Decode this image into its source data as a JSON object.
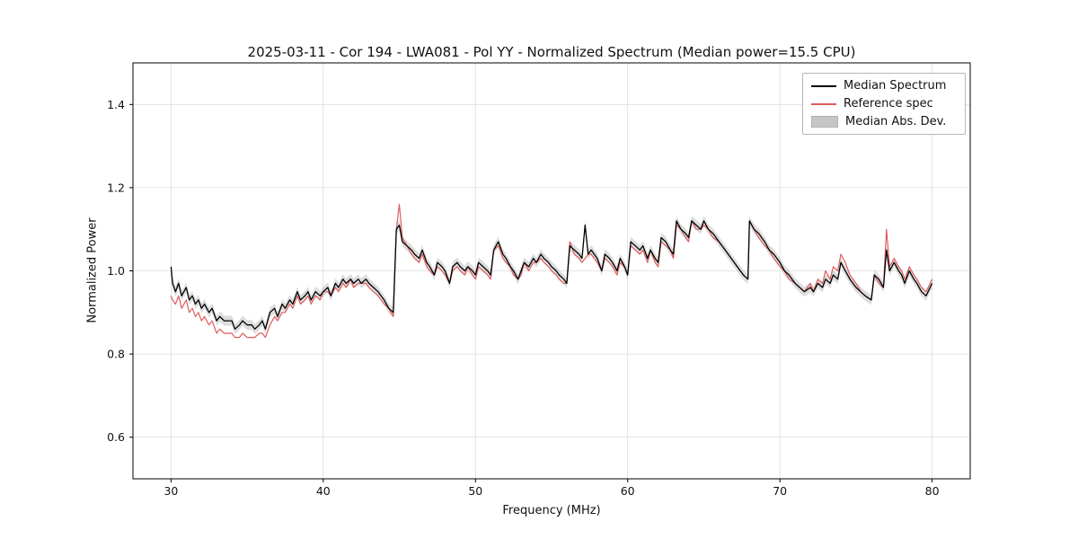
{
  "figure": {
    "title": "2025-03-11 - Cor 194 - LWA081 - Pol YY - Normalized Spectrum (Median power=15.5 CPU)",
    "xlabel": "Frequency (MHz)",
    "ylabel": "Normalized Power"
  },
  "legend": {
    "items": [
      {
        "label": "Median Spectrum",
        "type": "line",
        "color": "#000000"
      },
      {
        "label": "Reference spec",
        "type": "line",
        "color": "#e05c5c"
      },
      {
        "label": "Median Abs. Dev.",
        "type": "band",
        "color": "#c6c6c6"
      }
    ]
  },
  "chart_data": {
    "type": "line",
    "title": "2025-03-11 - Cor 194 - LWA081 - Pol YY - Normalized Spectrum (Median power=15.5 CPU)",
    "xlabel": "Frequency (MHz)",
    "ylabel": "Normalized Power",
    "xlim": [
      27.5,
      82.5
    ],
    "ylim": [
      0.5,
      1.5
    ],
    "xticks": [
      30,
      40,
      50,
      60,
      70,
      80
    ],
    "xticklabels": [
      "30",
      "40",
      "50",
      "60",
      "70",
      "80"
    ],
    "yticks": [
      0.6,
      0.8,
      1.0,
      1.2,
      1.4
    ],
    "yticklabels": [
      "0.6",
      "0.8",
      "1.0",
      "1.2",
      "1.4"
    ],
    "grid": true,
    "grid_color": "#dddddd",
    "legend_position": "upper right",
    "mad_halfwidth": 0.012,
    "band_color": "#aaaaaa",
    "band_opacity": 0.4,
    "x": [
      30.0,
      30.1,
      30.3,
      30.5,
      30.7,
      31.0,
      31.2,
      31.4,
      31.6,
      31.8,
      32.0,
      32.2,
      32.5,
      32.7,
      33.0,
      33.2,
      33.5,
      34.0,
      34.2,
      34.5,
      34.7,
      35.0,
      35.3,
      35.5,
      35.8,
      36.0,
      36.2,
      36.5,
      36.8,
      37.0,
      37.3,
      37.5,
      37.8,
      38.0,
      38.3,
      38.5,
      38.8,
      39.0,
      39.2,
      39.5,
      39.8,
      40.0,
      40.3,
      40.5,
      40.8,
      41.0,
      41.3,
      41.5,
      41.8,
      42.0,
      42.3,
      42.5,
      42.8,
      43.0,
      43.3,
      43.6,
      44.0,
      44.3,
      44.6,
      44.8,
      45.0,
      45.2,
      45.5,
      45.8,
      46.0,
      46.3,
      46.5,
      46.8,
      47.0,
      47.3,
      47.5,
      47.8,
      48.0,
      48.3,
      48.5,
      48.8,
      49.0,
      49.3,
      49.5,
      49.8,
      50.0,
      50.2,
      50.5,
      50.8,
      51.0,
      51.2,
      51.5,
      51.8,
      52.0,
      52.3,
      52.5,
      52.8,
      53.0,
      53.2,
      53.5,
      53.8,
      54.0,
      54.3,
      54.5,
      54.8,
      55.0,
      55.3,
      55.5,
      55.8,
      56.0,
      56.2,
      56.5,
      56.8,
      57.0,
      57.2,
      57.4,
      57.6,
      58.0,
      58.3,
      58.5,
      58.8,
      59.0,
      59.3,
      59.5,
      59.8,
      60.0,
      60.2,
      60.5,
      60.8,
      61.0,
      61.3,
      61.5,
      61.8,
      62.0,
      62.2,
      62.5,
      62.8,
      63.0,
      63.2,
      63.5,
      63.8,
      64.0,
      64.2,
      64.5,
      64.8,
      65.0,
      65.3,
      65.6,
      66.0,
      66.4,
      66.8,
      67.2,
      67.6,
      67.9,
      68.0,
      68.3,
      68.6,
      69.0,
      69.3,
      69.6,
      70.0,
      70.3,
      70.6,
      71.0,
      71.3,
      71.6,
      72.0,
      72.2,
      72.5,
      72.8,
      73.0,
      73.3,
      73.5,
      73.8,
      74.0,
      74.3,
      74.6,
      75.0,
      75.3,
      75.6,
      76.0,
      76.2,
      76.5,
      76.8,
      77.0,
      77.2,
      77.5,
      77.8,
      78.0,
      78.2,
      78.5,
      78.8,
      79.0,
      79.3,
      79.6,
      80.0
    ],
    "series": [
      {
        "name": "Median Spectrum",
        "color": "#000000",
        "values": [
          1.01,
          0.97,
          0.95,
          0.97,
          0.94,
          0.96,
          0.93,
          0.94,
          0.92,
          0.93,
          0.91,
          0.92,
          0.9,
          0.91,
          0.88,
          0.89,
          0.88,
          0.88,
          0.86,
          0.87,
          0.88,
          0.87,
          0.87,
          0.86,
          0.87,
          0.88,
          0.86,
          0.9,
          0.91,
          0.89,
          0.92,
          0.91,
          0.93,
          0.92,
          0.95,
          0.93,
          0.94,
          0.95,
          0.93,
          0.95,
          0.94,
          0.95,
          0.96,
          0.94,
          0.97,
          0.96,
          0.98,
          0.97,
          0.98,
          0.97,
          0.98,
          0.97,
          0.98,
          0.97,
          0.96,
          0.95,
          0.93,
          0.91,
          0.9,
          1.1,
          1.11,
          1.07,
          1.06,
          1.05,
          1.04,
          1.03,
          1.05,
          1.02,
          1.01,
          0.99,
          1.02,
          1.01,
          1.0,
          0.97,
          1.01,
          1.02,
          1.01,
          1.0,
          1.01,
          1.0,
          0.99,
          1.02,
          1.01,
          1.0,
          0.99,
          1.05,
          1.07,
          1.04,
          1.03,
          1.01,
          1.0,
          0.98,
          1.0,
          1.02,
          1.01,
          1.03,
          1.02,
          1.04,
          1.03,
          1.02,
          1.01,
          1.0,
          0.99,
          0.98,
          0.97,
          1.06,
          1.05,
          1.04,
          1.03,
          1.11,
          1.04,
          1.05,
          1.03,
          1.0,
          1.04,
          1.03,
          1.02,
          1.0,
          1.03,
          1.01,
          0.99,
          1.07,
          1.06,
          1.05,
          1.06,
          1.03,
          1.05,
          1.03,
          1.02,
          1.08,
          1.07,
          1.05,
          1.04,
          1.12,
          1.1,
          1.09,
          1.08,
          1.12,
          1.11,
          1.1,
          1.12,
          1.1,
          1.09,
          1.07,
          1.05,
          1.03,
          1.01,
          0.99,
          0.98,
          1.12,
          1.1,
          1.09,
          1.07,
          1.05,
          1.04,
          1.02,
          1.0,
          0.99,
          0.97,
          0.96,
          0.95,
          0.96,
          0.95,
          0.97,
          0.96,
          0.98,
          0.97,
          0.99,
          0.98,
          1.02,
          1.0,
          0.98,
          0.96,
          0.95,
          0.94,
          0.93,
          0.99,
          0.98,
          0.96,
          1.05,
          1.0,
          1.02,
          1.0,
          0.99,
          0.97,
          1.0,
          0.98,
          0.97,
          0.95,
          0.94,
          0.97
        ]
      },
      {
        "name": "Reference spec",
        "color": "#e05c5c",
        "values": [
          0.94,
          0.93,
          0.92,
          0.94,
          0.91,
          0.93,
          0.9,
          0.91,
          0.89,
          0.9,
          0.88,
          0.89,
          0.87,
          0.88,
          0.85,
          0.86,
          0.85,
          0.85,
          0.84,
          0.84,
          0.85,
          0.84,
          0.84,
          0.84,
          0.85,
          0.85,
          0.84,
          0.87,
          0.89,
          0.88,
          0.9,
          0.9,
          0.92,
          0.91,
          0.94,
          0.92,
          0.93,
          0.94,
          0.92,
          0.94,
          0.93,
          0.95,
          0.95,
          0.94,
          0.96,
          0.95,
          0.97,
          0.96,
          0.98,
          0.96,
          0.97,
          0.97,
          0.97,
          0.96,
          0.95,
          0.94,
          0.92,
          0.91,
          0.89,
          1.1,
          1.16,
          1.08,
          1.06,
          1.04,
          1.03,
          1.02,
          1.04,
          1.01,
          1.0,
          0.99,
          1.01,
          1.0,
          0.99,
          0.97,
          1.0,
          1.01,
          1.0,
          0.99,
          1.01,
          0.99,
          0.98,
          1.01,
          1.0,
          0.99,
          0.98,
          1.05,
          1.06,
          1.03,
          1.02,
          1.01,
          0.99,
          0.98,
          0.99,
          1.02,
          1.0,
          1.02,
          1.02,
          1.03,
          1.02,
          1.01,
          1.0,
          0.99,
          0.98,
          0.97,
          0.97,
          1.07,
          1.04,
          1.03,
          1.02,
          1.03,
          1.04,
          1.04,
          1.02,
          1.0,
          1.03,
          1.02,
          1.01,
          0.99,
          1.02,
          1.01,
          0.99,
          1.06,
          1.05,
          1.04,
          1.05,
          1.02,
          1.05,
          1.02,
          1.01,
          1.07,
          1.06,
          1.05,
          1.03,
          1.11,
          1.1,
          1.08,
          1.07,
          1.12,
          1.1,
          1.1,
          1.11,
          1.1,
          1.08,
          1.07,
          1.05,
          1.03,
          1.01,
          0.99,
          0.98,
          1.12,
          1.1,
          1.08,
          1.06,
          1.05,
          1.03,
          1.01,
          1.0,
          0.98,
          0.97,
          0.96,
          0.95,
          0.97,
          0.95,
          0.98,
          0.97,
          1.0,
          0.98,
          1.01,
          1.0,
          1.04,
          1.02,
          0.99,
          0.97,
          0.95,
          0.94,
          0.93,
          0.99,
          0.97,
          0.96,
          1.1,
          1.01,
          1.03,
          1.01,
          1.0,
          0.98,
          1.01,
          0.99,
          0.98,
          0.96,
          0.95,
          0.98
        ]
      }
    ]
  }
}
